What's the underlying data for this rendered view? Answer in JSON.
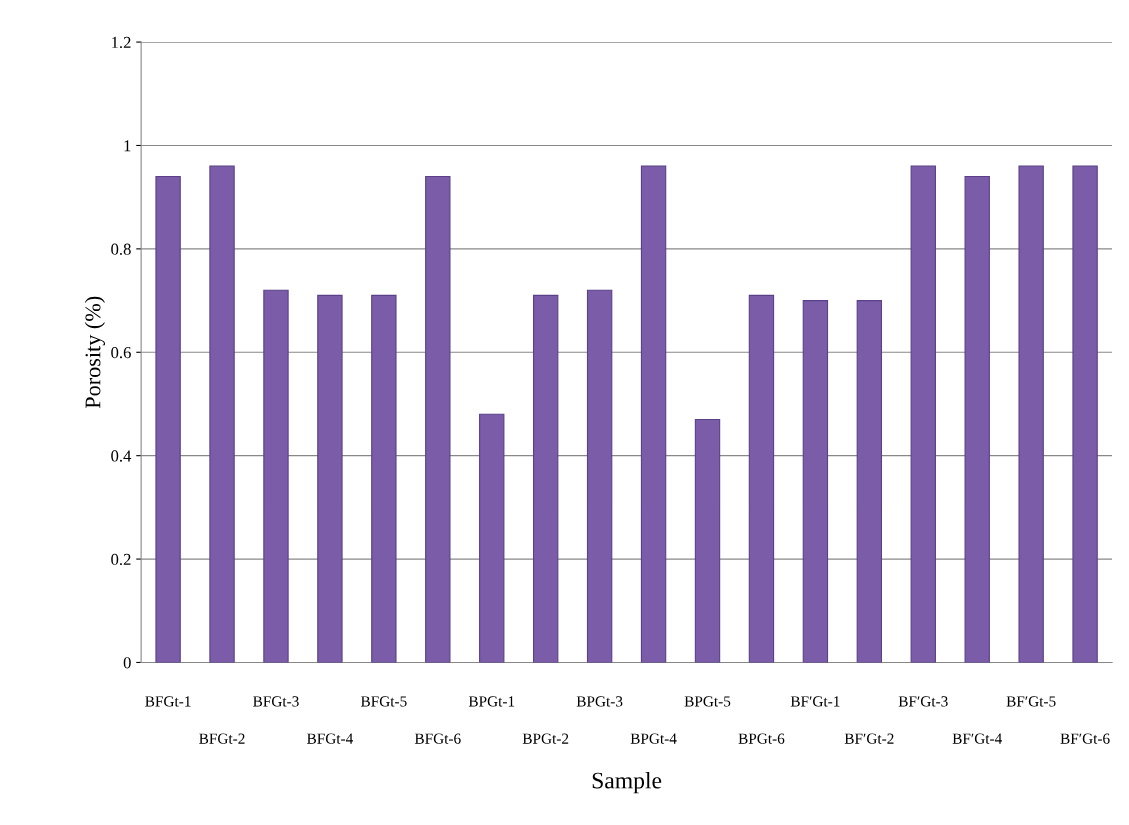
{
  "chart_data": {
    "type": "bar",
    "xlabel": "Sample",
    "ylabel": "Porosity (%)",
    "categories": [
      "BFGt-1",
      "BFGt-2",
      "BFGt-3",
      "BFGt-4",
      "BFGt-5",
      "BFGt-6",
      "BPGt-1",
      "BPGt-2",
      "BPGt-3",
      "BPGt-4",
      "BPGt-5",
      "BPGt-6",
      "BF′Gt-1",
      "BF′Gt-2",
      "BF′Gt-3",
      "BF′Gt-4",
      "BF′Gt-5",
      "BF′Gt-6"
    ],
    "values": [
      0.94,
      0.96,
      0.72,
      0.71,
      0.71,
      0.94,
      0.48,
      0.71,
      0.72,
      0.96,
      0.47,
      0.71,
      0.7,
      0.7,
      0.96,
      0.94,
      0.96,
      0.96
    ],
    "color": "#7a5ca8",
    "ylim": [
      0,
      1.2
    ],
    "yticks": [
      {
        "value": 0,
        "label": "0"
      },
      0.2,
      0.4,
      0.6,
      0.8,
      {
        "value": 1,
        "label": "1"
      },
      1.2
    ],
    "grid": "y"
  }
}
